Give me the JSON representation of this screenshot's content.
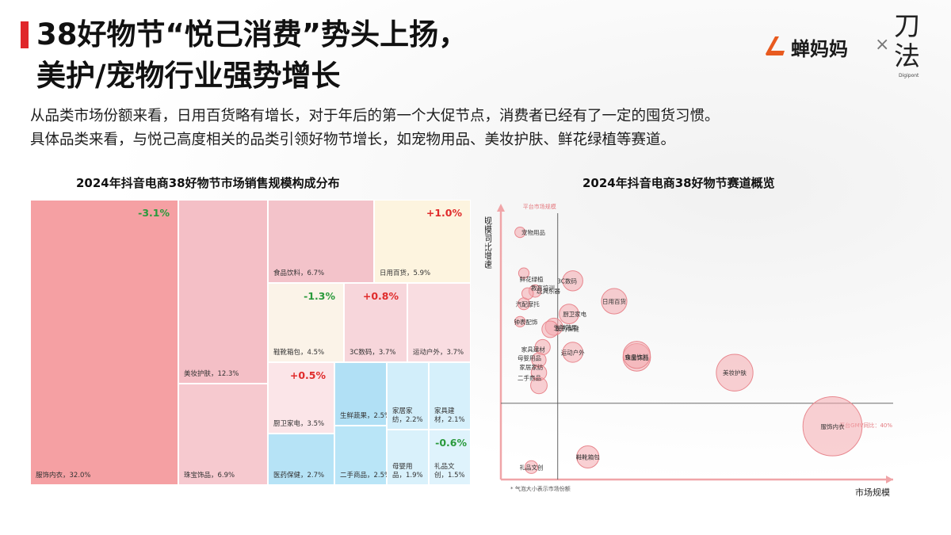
{
  "header": {
    "title_line1": "38好物节“悦己消费”势头上扬，",
    "title_line2": "美护/宠物行业强势增长",
    "logo_brand": "蝉妈妈",
    "logo_times": "×",
    "logo_partner": "刀",
    "logo_partner2": "法",
    "logo_partner_sub": "Digipont"
  },
  "subtitle": {
    "line1": "从品类市场份额来看，日用百货略有增长，对于年后的第一个大促节点，消费者已经有了一定的囤货习惯。",
    "line2": "具体品类来看，与悦己高度相关的品类引领好物节增长，如宠物用品、美妆护肤、鲜花绿植等赛道。"
  },
  "colors": {
    "accent": "#e0262a",
    "up": "#e02b2b",
    "down": "#2a9a3c",
    "bubble_fill": "#f4a9ae",
    "bubble_stroke": "#e8878e"
  },
  "chart_data": [
    {
      "type": "treemap",
      "title": "2024年抖音电商38好物节市场销售规模构成分布",
      "cells": [
        {
          "name": "服饰内衣",
          "share": "32.0%",
          "change": "-3.1%",
          "direction": "down",
          "color": "#f5a0a3"
        },
        {
          "name": "美妆护肤",
          "share": "12.3%",
          "change": "",
          "direction": "",
          "color": "#f4bfc6"
        },
        {
          "name": "珠宝饰品",
          "share": "6.9%",
          "change": "",
          "direction": "",
          "color": "#f6c9cf"
        },
        {
          "name": "食品饮料",
          "share": "6.7%",
          "change": "",
          "direction": "",
          "color": "#f3c3ca"
        },
        {
          "name": "日用百货",
          "share": "5.9%",
          "change": "+1.0%",
          "direction": "up",
          "color": "#fdf4df"
        },
        {
          "name": "鞋靴箱包",
          "share": "4.5%",
          "change": "-1.3%",
          "direction": "down",
          "color": "#fbf3e8"
        },
        {
          "name": "3C数码",
          "share": "3.7%",
          "change": "+0.8%",
          "direction": "up",
          "color": "#f7d6db"
        },
        {
          "name": "运动户外",
          "share": "3.7%",
          "change": "",
          "direction": "",
          "color": "#f9dde1"
        },
        {
          "name": "厨卫家电",
          "share": "3.5%",
          "change": "+0.5%",
          "direction": "up",
          "color": "#fbe5e8"
        },
        {
          "name": "医药保健",
          "share": "2.7%",
          "change": "",
          "direction": "",
          "color": "#b6e3f6"
        },
        {
          "name": "生鲜蔬果",
          "share": "2.5%",
          "change": "",
          "direction": "",
          "color": "#b1e0f5"
        },
        {
          "name": "二手商品",
          "share": "2.5%",
          "change": "",
          "direction": "",
          "color": "#b9e5f7"
        },
        {
          "name": "家居家纺",
          "share": "2.2%",
          "change": "",
          "direction": "",
          "color": "#d2eefa"
        },
        {
          "name": "家具建材",
          "share": "2.1%",
          "change": "",
          "direction": "",
          "color": "#d6f0fb"
        },
        {
          "name": "母婴用品",
          "share": "1.9%",
          "change": "",
          "direction": "",
          "color": "#d9f1fb"
        },
        {
          "name": "礼品文创",
          "share": "1.5%",
          "change": "-0.6%",
          "direction": "down",
          "color": "#dff3fc"
        }
      ]
    },
    {
      "type": "scatter",
      "title": "2024年抖音电商38好物节赛道概览",
      "xlabel": "市场规模",
      "ylabel": "规模同比增速",
      "y_axis_note": "平台市场规模",
      "x_axis_note": "平台GMV同比：40%",
      "footnote": "* 气泡大小表示市场份额",
      "x_domain": [
        0,
        100
      ],
      "y_domain": [
        0,
        100
      ],
      "reference": {
        "x": 13,
        "y": 28
      },
      "points": [
        {
          "name": "服饰内衣",
          "x": 86,
          "y": 19,
          "size": 32.0,
          "label_dx": 0,
          "label_dy": 0
        },
        {
          "name": "美妆护肤",
          "x": 60,
          "y": 40,
          "size": 12.3,
          "label_dx": 0,
          "label_dy": 0
        },
        {
          "name": "日用百货",
          "x": 28,
          "y": 68,
          "size": 5.9,
          "label_dx": 0,
          "label_dy": 0
        },
        {
          "name": "珠宝饰品",
          "x": 34,
          "y": 46,
          "size": 6.9,
          "label_dx": 0,
          "label_dy": 0
        },
        {
          "name": "食品饮料",
          "x": 34,
          "y": 47,
          "size": 6.7,
          "label_dx": 0,
          "label_dy": 1
        },
        {
          "name": "3C数码",
          "x": 17,
          "y": 76,
          "size": 3.7,
          "label_dx": -3,
          "label_dy": 0
        },
        {
          "name": "厨卫家电",
          "x": 16,
          "y": 63,
          "size": 3.5,
          "label_dx": 3,
          "label_dy": 0
        },
        {
          "name": "运动户外",
          "x": 17,
          "y": 48,
          "size": 3.7,
          "label_dx": 0,
          "label_dy": 0
        },
        {
          "name": "鞋靴箱包",
          "x": 21,
          "y": 7,
          "size": 4.5,
          "label_dx": 0,
          "label_dy": 0
        },
        {
          "name": "宠物用品",
          "x": 3,
          "y": 95,
          "size": 1.0,
          "label_dx": 7,
          "label_dy": 0
        },
        {
          "name": "鲜花绿植",
          "x": 4,
          "y": 79,
          "size": 1.0,
          "label_dx": 4,
          "label_dy": 3
        },
        {
          "name": "玩具乐器",
          "x": 7,
          "y": 72,
          "size": 1.4,
          "label_dx": 7,
          "label_dy": 0
        },
        {
          "name": "教育培训",
          "x": 5,
          "y": 71,
          "size": 1.2,
          "label_dx": 8,
          "label_dy": -3
        },
        {
          "name": "汽配摩托",
          "x": 4,
          "y": 67,
          "size": 1.3,
          "label_dx": 2,
          "label_dy": 0
        },
        {
          "name": "医药保健",
          "x": 12,
          "y": 58,
          "size": 2.7,
          "label_dx": 7,
          "label_dy": 1
        },
        {
          "name": "生鲜蔬果",
          "x": 11,
          "y": 57,
          "size": 2.5,
          "label_dx": 8,
          "label_dy": -1
        },
        {
          "name": "钟表配饰",
          "x": 3,
          "y": 60,
          "size": 1.0,
          "label_dx": 3,
          "label_dy": 0
        },
        {
          "name": "家具建材",
          "x": 9,
          "y": 50,
          "size": 2.1,
          "label_dx": -5,
          "label_dy": 1
        },
        {
          "name": "母婴用品",
          "x": 8,
          "y": 45,
          "size": 1.9,
          "label_dx": -5,
          "label_dy": -1
        },
        {
          "name": "家居家纺",
          "x": 8,
          "y": 40,
          "size": 2.2,
          "label_dx": -4,
          "label_dy": -3
        },
        {
          "name": "二手商品",
          "x": 8,
          "y": 35,
          "size": 2.5,
          "label_dx": -5,
          "label_dy": -4
        },
        {
          "name": "礼品文创",
          "x": 6,
          "y": 3,
          "size": 1.5,
          "label_dx": 0,
          "label_dy": 0
        }
      ]
    }
  ]
}
